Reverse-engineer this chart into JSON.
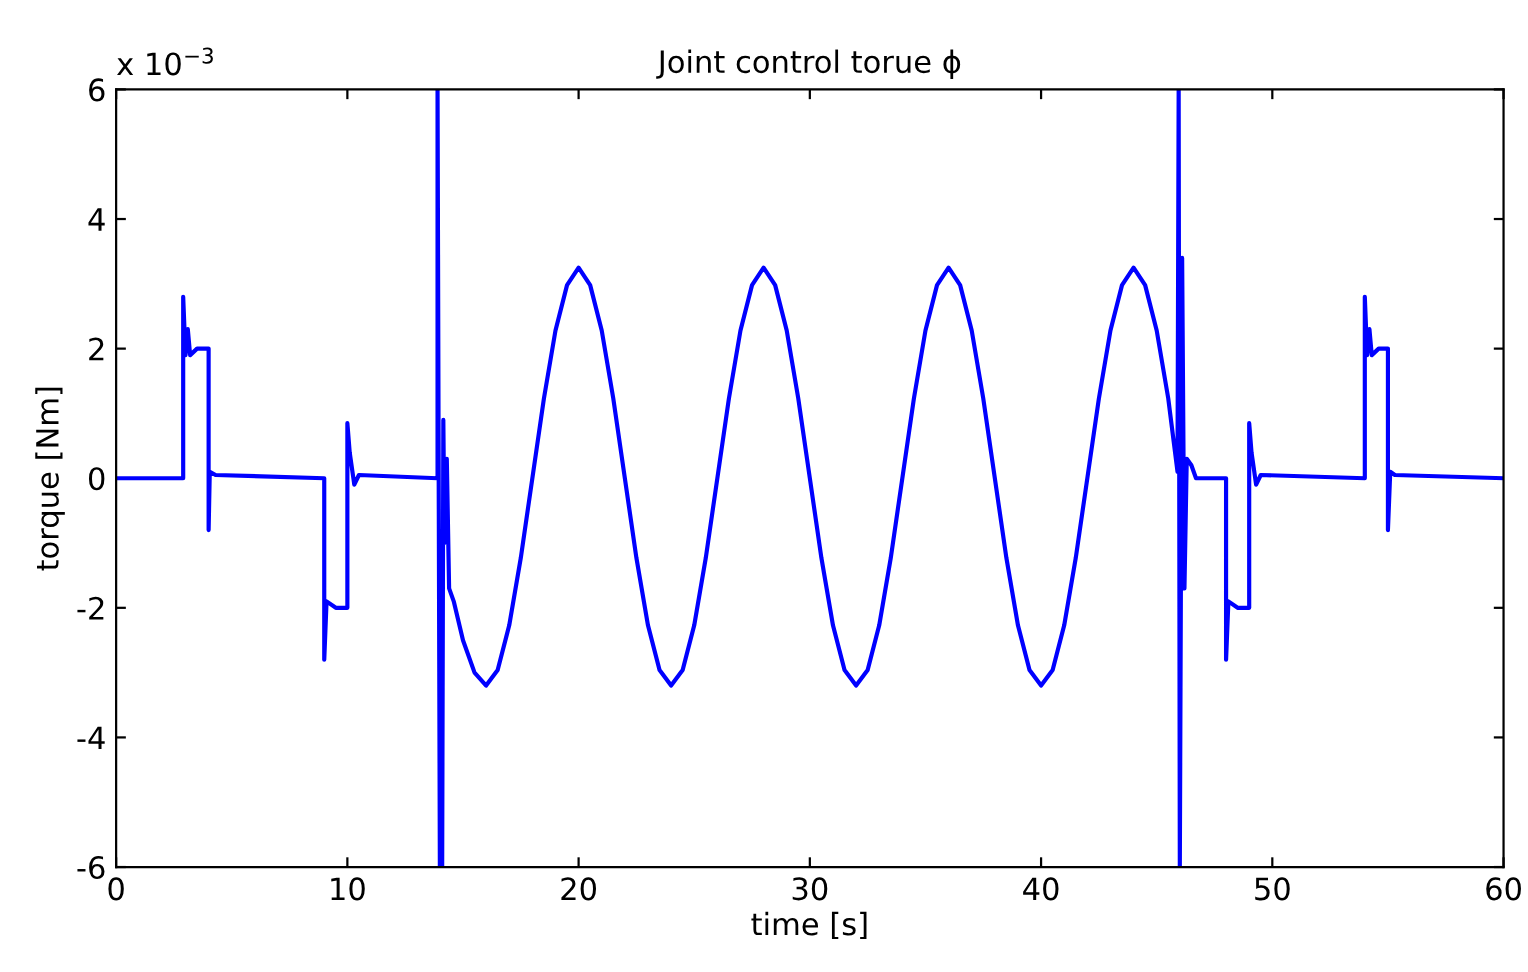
{
  "chart_data": {
    "type": "line",
    "title": "Joint control torue ϕ",
    "xlabel": "time [s]",
    "ylabel": "torque [Nm]",
    "annotations": [
      "x 10$^{−3}$"
    ],
    "xlim": [
      0,
      60
    ],
    "ylim": [
      -6,
      6
    ],
    "xticks": [
      0,
      10,
      20,
      30,
      40,
      50,
      60
    ],
    "yticks": [
      -6,
      -4,
      -2,
      0,
      2,
      4,
      6
    ],
    "grid": false,
    "marker": "none",
    "line_style": "solid",
    "series": [
      {
        "color": "#0000ff",
        "x": [
          0,
          2.9,
          2.9,
          3.0,
          3.1,
          3.2,
          3.5,
          4.0,
          4.0,
          4.05,
          4.3,
          9.0,
          9.0,
          9.1,
          9.5,
          10.0,
          10.0,
          10.1,
          10.3,
          10.5,
          13.9,
          13.9,
          14.0,
          14.1,
          14.15,
          14.2,
          14.3,
          14.4,
          14.6,
          15.0,
          15.5,
          16,
          16.5,
          17,
          17.5,
          18,
          18.5,
          19,
          19.5,
          20,
          20.5,
          21,
          21.5,
          22,
          22.5,
          23,
          23.5,
          24,
          24.5,
          25,
          25.5,
          26,
          26.5,
          27,
          27.5,
          28,
          28.5,
          29,
          29.5,
          30,
          30.5,
          31,
          31.5,
          32,
          32.5,
          33,
          33.5,
          34,
          34.5,
          35,
          35.5,
          36,
          36.5,
          37,
          37.5,
          38,
          38.5,
          39,
          39.5,
          40,
          40.5,
          41,
          41.5,
          42,
          42.5,
          43,
          43.5,
          44,
          44.5,
          45,
          45.5,
          45.9,
          45.95,
          46.0,
          46.1,
          46.2,
          46.3,
          46.5,
          46.7,
          48.0,
          48.0,
          48.1,
          48.5,
          49.0,
          49.0,
          49.1,
          49.3,
          49.5,
          54.0,
          54.0,
          54.1,
          54.2,
          54.3,
          54.6,
          55.0,
          55.0,
          55.1,
          55.3,
          60
        ],
        "values": [
          0,
          0,
          2.8,
          1.9,
          2.3,
          1.9,
          2.0,
          2.0,
          -0.8,
          0.1,
          0.05,
          0,
          -2.8,
          -1.9,
          -2.0,
          -2.0,
          0.85,
          0.4,
          -0.1,
          0.05,
          0,
          6.0,
          -6.0,
          -6.0,
          0.9,
          -1.0,
          0.3,
          -1.7,
          -1.9,
          -2.5,
          -3.0,
          -3.2,
          -2.96,
          -2.27,
          -1.23,
          0,
          1.23,
          2.28,
          2.98,
          3.25,
          2.98,
          2.28,
          1.23,
          0,
          -1.23,
          -2.27,
          -2.96,
          -3.2,
          -2.96,
          -2.27,
          -1.23,
          0,
          1.23,
          2.28,
          2.98,
          3.25,
          2.98,
          2.28,
          1.23,
          0,
          -1.23,
          -2.27,
          -2.96,
          -3.2,
          -2.96,
          -2.27,
          -1.23,
          0,
          1.23,
          2.28,
          2.98,
          3.25,
          2.98,
          2.28,
          1.23,
          0,
          -1.23,
          -2.27,
          -2.96,
          -3.2,
          -2.96,
          -2.27,
          -1.23,
          0,
          1.23,
          2.28,
          2.98,
          3.25,
          2.98,
          2.28,
          1.23,
          0.1,
          6.0,
          -6.0,
          3.4,
          -1.7,
          0.3,
          0.2,
          0,
          0,
          -2.8,
          -1.9,
          -2.0,
          -2.0,
          0.85,
          0.4,
          -0.1,
          0.05,
          0,
          2.8,
          1.9,
          2.3,
          1.9,
          2.0,
          2.0,
          -0.8,
          0.1,
          0.05,
          0
        ]
      }
    ]
  }
}
